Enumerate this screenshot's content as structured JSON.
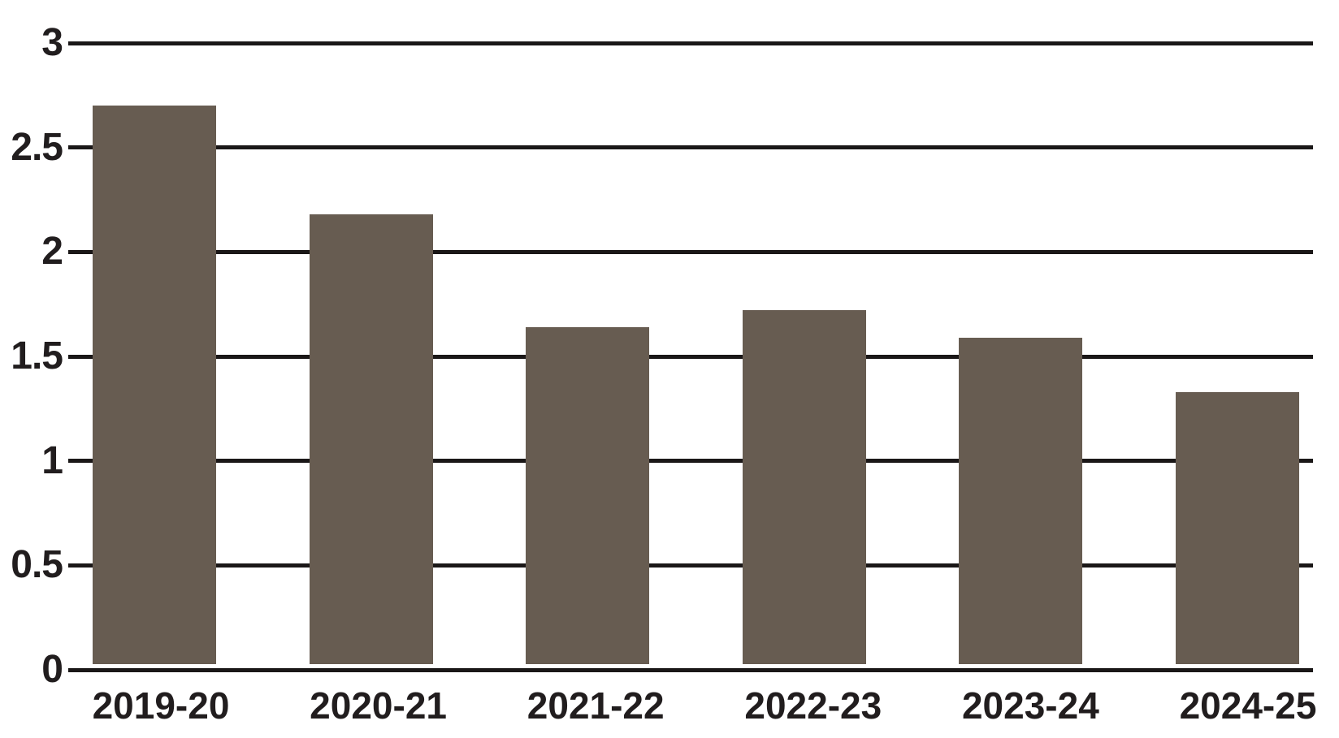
{
  "chart_data": {
    "type": "bar",
    "categories": [
      "2019-20",
      "2020-21",
      "2021-22",
      "2022-23",
      "2023-24",
      "2024-25"
    ],
    "values": [
      2.7,
      2.18,
      1.64,
      1.72,
      1.59,
      1.33
    ],
    "title": "",
    "xlabel": "",
    "ylabel": "",
    "ylim": [
      0,
      3
    ],
    "yticks": [
      0,
      0.5,
      1,
      1.5,
      2,
      2.5,
      3
    ],
    "ytick_labels": [
      "0",
      "0.5",
      "1",
      "1.5",
      "2",
      "2.5",
      "3"
    ],
    "grid": true,
    "legend": false,
    "legend_position": "none",
    "colors": {
      "bar": "#675c51",
      "gridline": "#1a1717",
      "text": "#211d1e",
      "background": "#ffffff"
    }
  }
}
